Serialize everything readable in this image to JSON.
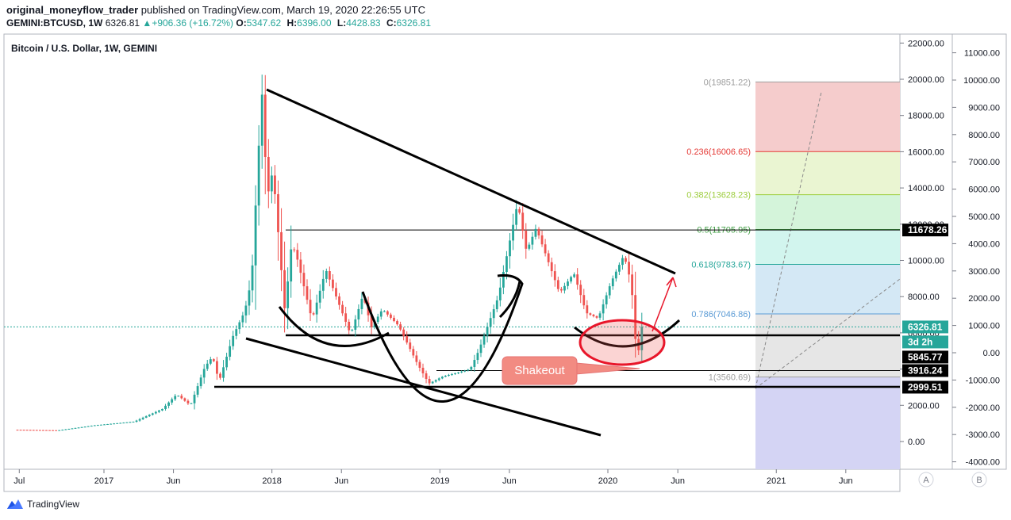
{
  "header": {
    "author": "original_moneyflow_trader",
    "published": "published on TradingView.com, March 19, 2020 22:26:55 UTC",
    "symbol": "GEMINI:BTCUSD, 1W",
    "last": "6326.81",
    "change": "+906.36 (+16.72%)",
    "o_label": "O:",
    "o": "5347.62",
    "h_label": "H:",
    "h": "6396.00",
    "l_label": "L:",
    "l": "4428.83",
    "c_label": "C:",
    "c": "6326.81"
  },
  "footer": {
    "brand": "TradingView"
  },
  "colors": {
    "up": "#26a69a",
    "down": "#ef5350",
    "line": "#000000"
  },
  "chart_data": {
    "type": "candlestick",
    "title": "Bitcoin / U.S. Dollar, 1W, GEMINI",
    "right_axis_1": {
      "ticks": [
        "22000.00",
        "20000.00",
        "18000.00",
        "16000.00",
        "14000.00",
        "12000.00",
        "10000.00",
        "8000.00",
        "6000.00",
        "4000.00",
        "2000.00",
        "0.00"
      ],
      "ylim": [
        -1200,
        23000
      ]
    },
    "right_axis_2": {
      "ticks": [
        "11000.00",
        "10000.00",
        "9000.00",
        "8000.00",
        "7000.00",
        "6000.00",
        "5000.00",
        "4000.00",
        "3000.00",
        "2000.00",
        "1000.00",
        "0.00",
        "-1000.00",
        "-2000.00",
        "-3000.00",
        "-4000.00"
      ]
    },
    "x_ticks": [
      "Jul",
      "2017",
      "Jun",
      "2018",
      "Jun",
      "2019",
      "Jun",
      "2020",
      "Jun",
      "2021",
      "Jun"
    ],
    "price_labels": [
      {
        "text": "11678.26",
        "value": 11678.26,
        "style": "black"
      },
      {
        "text": "6326.81",
        "value": 6326.81,
        "style": "teal"
      },
      {
        "text": "3d 2h",
        "value": 5950,
        "style": "teal"
      },
      {
        "text": "5845.77",
        "value": 5845.77,
        "style": "black"
      },
      {
        "text": "3916.24",
        "value": 3916.24,
        "style": "black"
      },
      {
        "text": "2999.51",
        "value": 2999.51,
        "style": "black"
      }
    ],
    "fib_levels": [
      {
        "label": "0(19851.22)",
        "value": 19851.22,
        "color": "#9e9e9e",
        "fill": "#f5cccc"
      },
      {
        "label": "0.236(16006.65)",
        "value": 16006.65,
        "color": "#e53935",
        "fill": "#eaf5d2"
      },
      {
        "label": "0.382(13628.23)",
        "value": 13628.23,
        "color": "#9ccc3c",
        "fill": "#d4f4da"
      },
      {
        "label": "0.5(11705.95)",
        "value": 11705.95,
        "color": "#43a047",
        "fill": "#d2f5ee"
      },
      {
        "label": "0.618(9783.67)",
        "value": 9783.67,
        "color": "#26a69a",
        "fill": "#d4e8f5"
      },
      {
        "label": "0.786(7046.86)",
        "value": 7046.86,
        "color": "#5b9bd5",
        "fill": "#e6e6e6"
      },
      {
        "label": "1(3560.69)",
        "value": 3560.69,
        "color": "#9e9e9e",
        "fill": "#d4d4f4"
      }
    ],
    "annotation": "Shakeout",
    "scale_buttons": [
      "A",
      "B"
    ],
    "series": [
      {
        "name": "BTCUSD",
        "anchors": [
          [
            "2016-06-27",
            650
          ],
          [
            "2016-10-01",
            620
          ],
          [
            "2016-12-20",
            900
          ],
          [
            "2017-03-15",
            1100
          ],
          [
            "2017-05-15",
            1800
          ],
          [
            "2017-06-15",
            2600
          ],
          [
            "2017-07-15",
            2000
          ],
          [
            "2017-08-15",
            4100
          ],
          [
            "2017-09-01",
            4700
          ],
          [
            "2017-09-15",
            3300
          ],
          [
            "2017-10-15",
            5800
          ],
          [
            "2017-11-10",
            7200
          ],
          [
            "2017-11-25",
            9000
          ],
          [
            "2017-12-17",
            19400
          ],
          [
            "2017-12-29",
            13500
          ],
          [
            "2018-01-10",
            15000
          ],
          [
            "2018-02-05",
            7200
          ],
          [
            "2018-02-20",
            11000
          ],
          [
            "2018-03-05",
            10000
          ],
          [
            "2018-04-05",
            6700
          ],
          [
            "2018-05-05",
            9500
          ],
          [
            "2018-06-28",
            5900
          ],
          [
            "2018-07-25",
            8100
          ],
          [
            "2018-08-12",
            6300
          ],
          [
            "2018-09-05",
            7300
          ],
          [
            "2018-10-10",
            6400
          ],
          [
            "2018-11-20",
            4300
          ],
          [
            "2018-12-15",
            3200
          ],
          [
            "2019-01-15",
            3600
          ],
          [
            "2019-02-15",
            3800
          ],
          [
            "2019-03-15",
            4000
          ],
          [
            "2019-04-02",
            5000
          ],
          [
            "2019-05-15",
            8000
          ],
          [
            "2019-06-26",
            13200
          ],
          [
            "2019-07-15",
            10500
          ],
          [
            "2019-08-05",
            11800
          ],
          [
            "2019-09-25",
            8200
          ],
          [
            "2019-10-26",
            9300
          ],
          [
            "2019-11-22",
            7100
          ],
          [
            "2019-12-18",
            6800
          ],
          [
            "2020-01-15",
            8800
          ],
          [
            "2020-02-12",
            10300
          ],
          [
            "2020-02-28",
            8700
          ],
          [
            "2020-03-12",
            4200
          ],
          [
            "2020-03-19",
            6326.81
          ]
        ]
      }
    ]
  }
}
